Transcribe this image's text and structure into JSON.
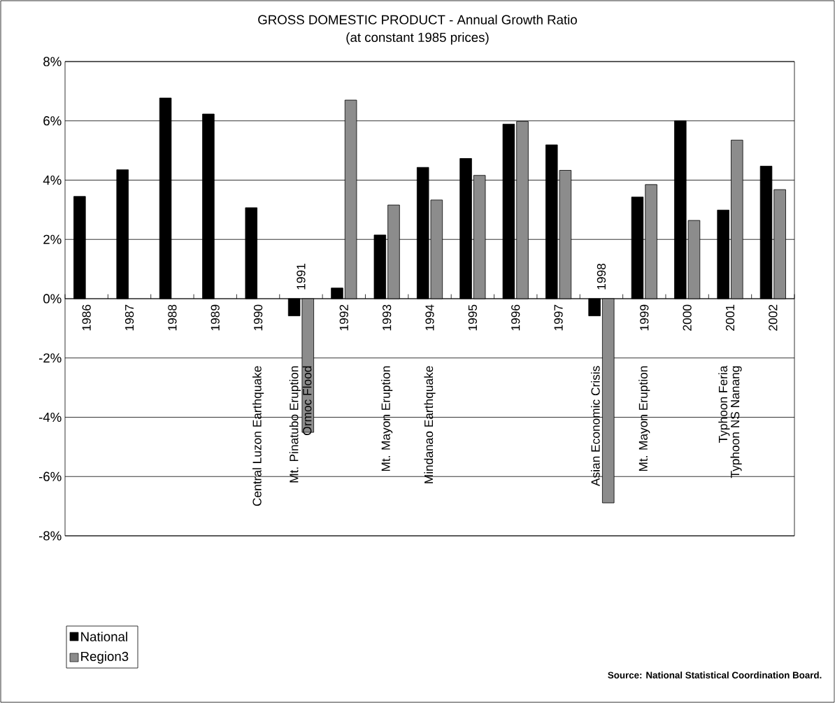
{
  "chart_data": {
    "type": "bar",
    "title": "GROSS DOMESTIC PRODUCT - Annual Growth Ratio",
    "subtitle": "(at constant 1985  prices)",
    "categories": [
      "1986",
      "1987",
      "1988",
      "1989",
      "1990",
      "1991",
      "1992",
      "1993",
      "1994",
      "1995",
      "1996",
      "1997",
      "1998",
      "1999",
      "2000",
      "2001",
      "2002"
    ],
    "series": [
      {
        "name": "National",
        "color": "#000000",
        "values": [
          3.45,
          4.35,
          6.77,
          6.23,
          3.07,
          -0.58,
          0.36,
          2.15,
          4.43,
          4.73,
          5.89,
          5.19,
          -0.58,
          3.43,
          6.0,
          2.99,
          4.47
        ]
      },
      {
        "name": "Region3",
        "color": "#8c8c8c",
        "values": [
          null,
          null,
          null,
          null,
          null,
          -4.51,
          6.7,
          3.16,
          3.33,
          4.16,
          5.98,
          4.33,
          -6.89,
          3.85,
          2.64,
          5.35,
          3.68
        ]
      }
    ],
    "ylim": [
      -8,
      8
    ],
    "yticks": [
      {
        "value": -8,
        "label": "-8%"
      },
      {
        "value": -6,
        "label": "-6%"
      },
      {
        "value": -4,
        "label": "-4%"
      },
      {
        "value": -2,
        "label": "-2%"
      },
      {
        "value": 0,
        "label": "0%"
      },
      {
        "value": 2,
        "label": "2%"
      },
      {
        "value": 4,
        "label": "4%"
      },
      {
        "value": 6,
        "label": "6%"
      },
      {
        "value": 8,
        "label": "8%"
      }
    ],
    "grid": "y",
    "legend": "bottom left",
    "annotations": [
      "Central Luzon Earthquake",
      "Mt. Pinatubo Eruption",
      "Ormoc Flood",
      "Mt. Mayon  Eruption",
      "Mindanao Earthquake",
      "Asian Economic Crisis",
      "Mt. Mayon Eruption",
      "Typhoon Feria",
      "Typhoon NS Nanang",
      "Source:  National Statistical Coordination Board."
    ]
  }
}
